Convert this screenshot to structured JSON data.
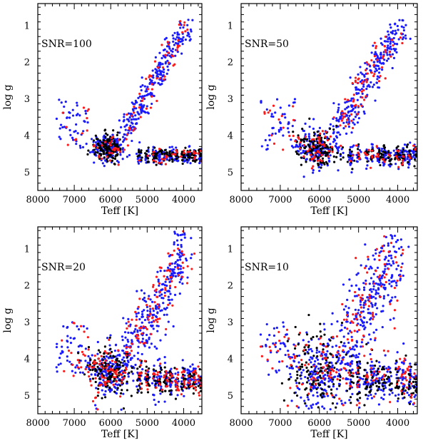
{
  "figure": {
    "series_colors": {
      "black": "#000000",
      "blue": "#1a1aff",
      "red": "#ff1a1a"
    }
  },
  "chart_data": [
    {
      "type": "scatter",
      "annotation": "SNR=100",
      "xlabel": "Teff [K]",
      "ylabel": "log g",
      "xlim": [
        8000,
        3500
      ],
      "ylim": [
        5.5,
        0.4
      ],
      "xticks": [
        8000,
        7000,
        6000,
        5000,
        4000
      ],
      "yticks": [
        1,
        2,
        3,
        4,
        5
      ],
      "spread": {
        "ms_logg_sigma": 0.18,
        "ms_teff_sigma": 220,
        "giant_sigma": 0.15
      },
      "series": [
        {
          "color": "blue",
          "count": 650
        },
        {
          "color": "black",
          "count": 260
        },
        {
          "color": "red",
          "count": 130
        }
      ]
    },
    {
      "type": "scatter",
      "annotation": "SNR=50",
      "xlabel": "Teff [K]",
      "ylabel": "log g",
      "xlim": [
        8000,
        3500
      ],
      "ylim": [
        5.5,
        0.4
      ],
      "xticks": [
        8000,
        7000,
        6000,
        5000,
        4000
      ],
      "yticks": [
        1,
        2,
        3,
        4,
        5
      ],
      "spread": {
        "ms_logg_sigma": 0.24,
        "ms_teff_sigma": 260,
        "giant_sigma": 0.25
      },
      "series": [
        {
          "color": "blue",
          "count": 650
        },
        {
          "color": "black",
          "count": 260
        },
        {
          "color": "red",
          "count": 180
        }
      ]
    },
    {
      "type": "scatter",
      "annotation": "SNR=20",
      "xlabel": "Teff [K]",
      "ylabel": "log g",
      "xlim": [
        8000,
        3500
      ],
      "ylim": [
        5.5,
        0.4
      ],
      "xticks": [
        8000,
        7000,
        6000,
        5000,
        4000
      ],
      "yticks": [
        1,
        2,
        3,
        4,
        5
      ],
      "spread": {
        "ms_logg_sigma": 0.35,
        "ms_teff_sigma": 330,
        "giant_sigma": 0.45
      },
      "series": [
        {
          "color": "blue",
          "count": 700
        },
        {
          "color": "black",
          "count": 260
        },
        {
          "color": "red",
          "count": 280
        }
      ]
    },
    {
      "type": "scatter",
      "annotation": "SNR=10",
      "xlabel": "Teff [K]",
      "ylabel": "log g",
      "xlim": [
        8000,
        3500
      ],
      "ylim": [
        5.5,
        0.4
      ],
      "xticks": [
        8000,
        7000,
        6000,
        5000,
        4000
      ],
      "yticks": [
        1,
        2,
        3,
        4,
        5
      ],
      "spread": {
        "ms_logg_sigma": 0.5,
        "ms_teff_sigma": 420,
        "giant_sigma": 0.65
      },
      "series": [
        {
          "color": "blue",
          "count": 750
        },
        {
          "color": "black",
          "count": 260
        },
        {
          "color": "red",
          "count": 220
        }
      ]
    }
  ]
}
